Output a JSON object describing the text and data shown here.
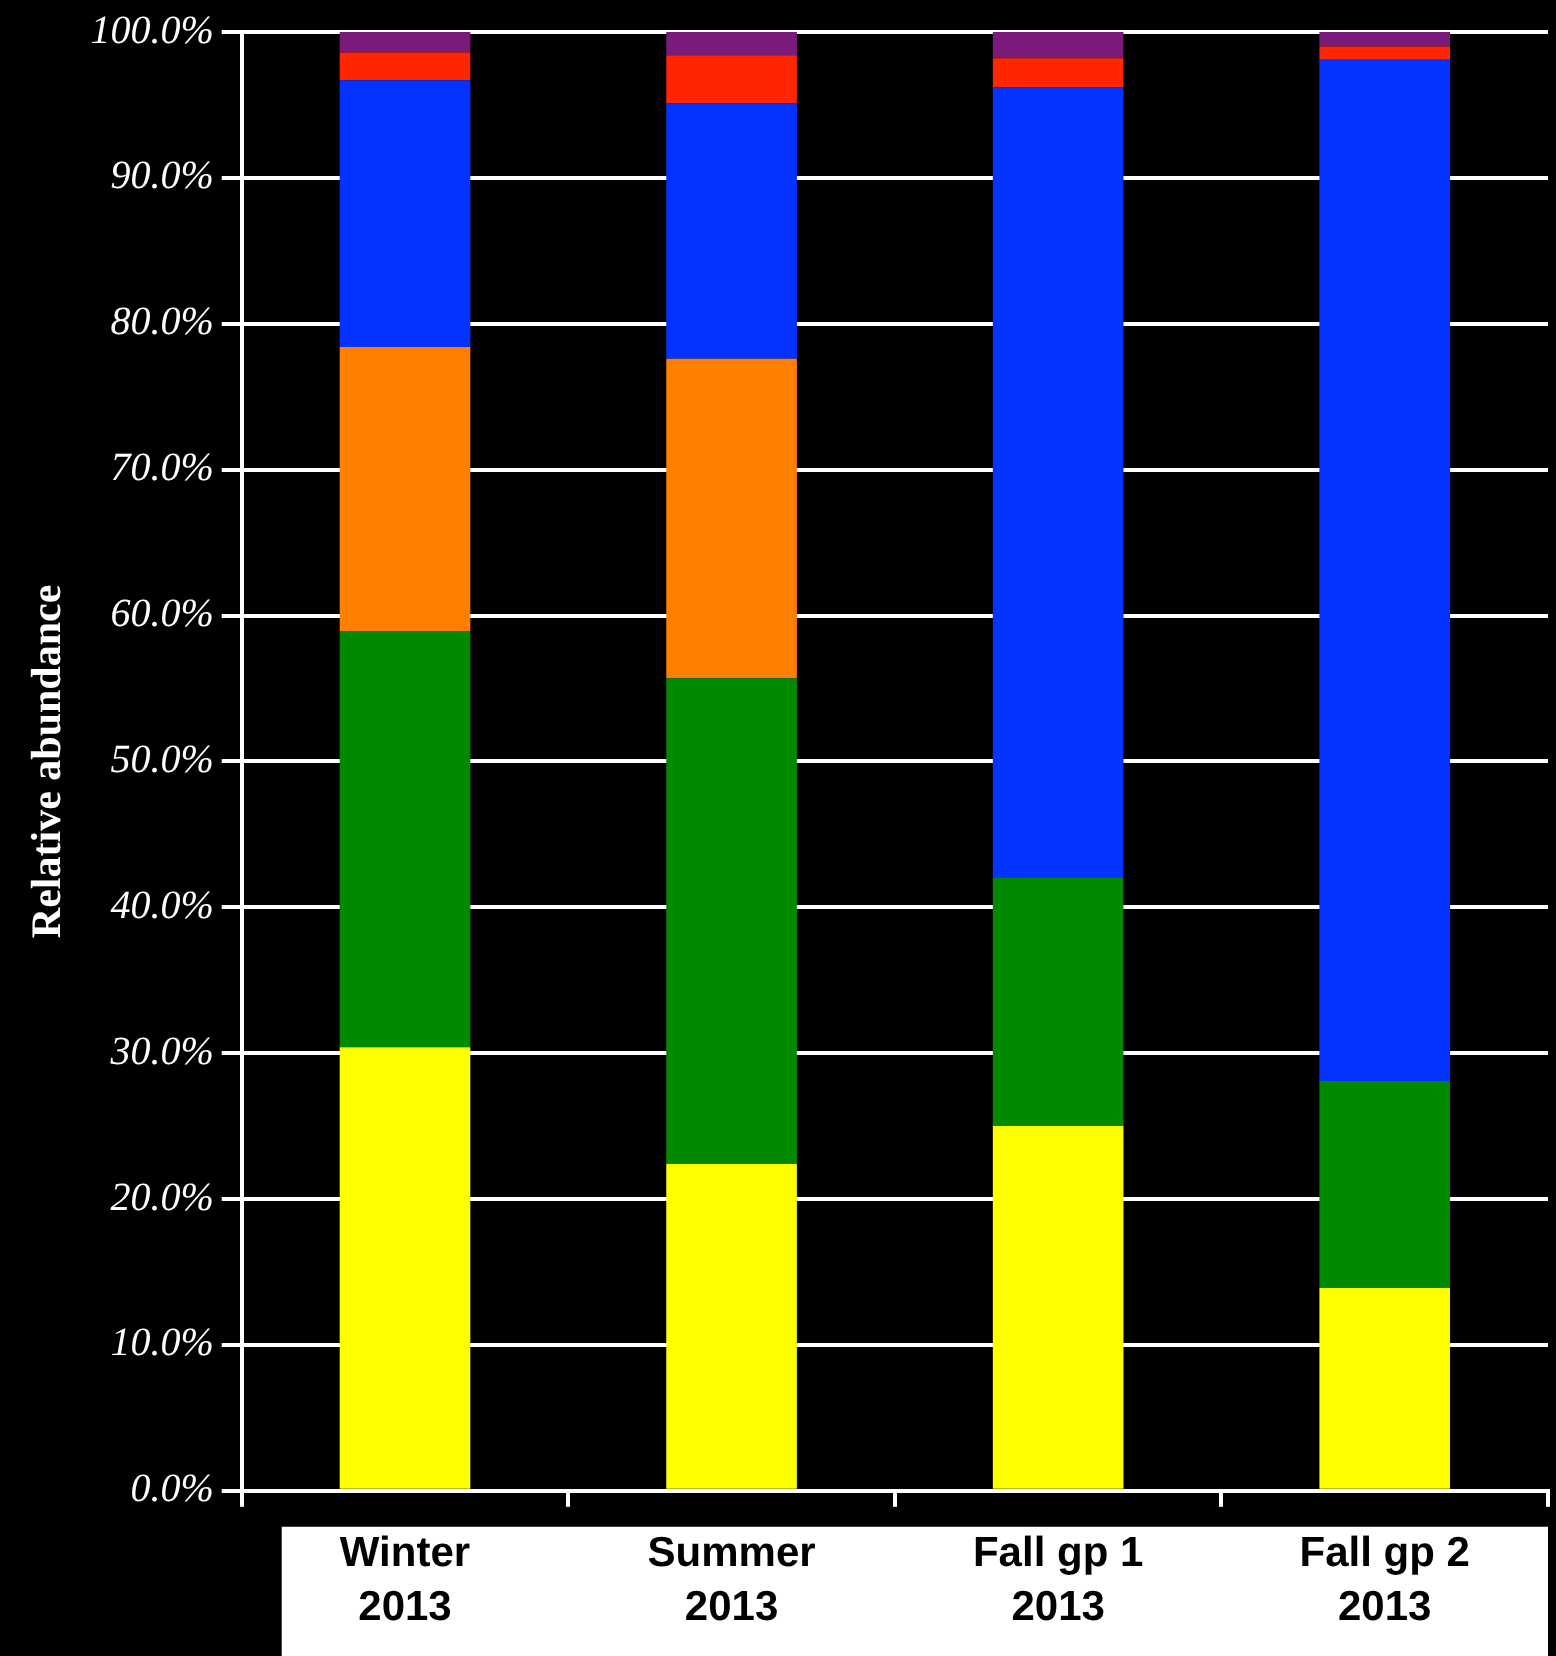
{
  "chart_data": {
    "type": "bar",
    "stacked": true,
    "ylabel": "Relative abundance",
    "categories": [
      "Winter 2013",
      "Summer 2013",
      "Fall gp 1 2013",
      "Fall gp 2 2013"
    ],
    "series": [
      {
        "color": "#ffff00",
        "values": [
          30.4,
          22.4,
          25.0,
          13.9
        ]
      },
      {
        "color": "#008a00",
        "values": [
          28.5,
          33.3,
          17.0,
          14.2
        ]
      },
      {
        "color": "#ff7f00",
        "values": [
          19.5,
          21.9,
          0,
          0
        ]
      },
      {
        "color": "#0433ff",
        "values": [
          18.3,
          17.5,
          54.2,
          70.0
        ]
      },
      {
        "color": "#ff2600",
        "values": [
          1.9,
          3.3,
          2.0,
          0.9
        ]
      },
      {
        "color": "#7a1a7a",
        "values": [
          1.4,
          1.6,
          1.8,
          1.0
        ]
      }
    ],
    "ylim": [
      0,
      100
    ],
    "yticks": [
      {
        "value": 0,
        "label": "0.0%"
      },
      {
        "value": 10,
        "label": "10.0%"
      },
      {
        "value": 20,
        "label": "20.0%"
      },
      {
        "value": 30,
        "label": "30.0%"
      },
      {
        "value": 40,
        "label": "40.0%"
      },
      {
        "value": 50,
        "label": "50.0%"
      },
      {
        "value": 60,
        "label": "60.0%"
      },
      {
        "value": 70,
        "label": "70.0%"
      },
      {
        "value": 80,
        "label": "80.0%"
      },
      {
        "value": 90,
        "label": "90.0%"
      },
      {
        "value": 100,
        "label": "100.0%"
      }
    ],
    "grid": "y",
    "legend": false
  }
}
